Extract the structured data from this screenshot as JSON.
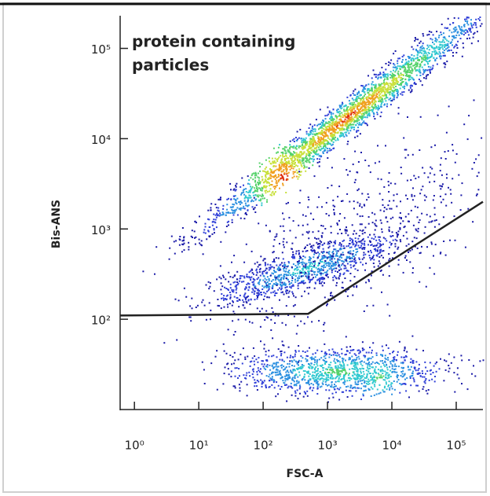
{
  "chart_data": {
    "type": "scatter",
    "x_label": "FSC-A",
    "y_label": "Bis-ANS",
    "annotation": [
      "protein containing",
      "particles"
    ],
    "xscale": "log",
    "yscale": "log",
    "xlim": [
      0.6,
      260000
    ],
    "ylim": [
      10,
      230000
    ],
    "xticks": [
      {
        "value": 1,
        "label": "10⁰"
      },
      {
        "value": 10,
        "label": "10¹"
      },
      {
        "value": 100,
        "label": "10²"
      },
      {
        "value": 1000,
        "label": "10³"
      },
      {
        "value": 10000,
        "label": "10⁴"
      },
      {
        "value": 100000,
        "label": "10⁵"
      }
    ],
    "yticks": [
      {
        "value": 100,
        "label": "10²"
      },
      {
        "value": 1000,
        "label": "10³"
      },
      {
        "value": 10000,
        "label": "10⁴"
      },
      {
        "value": 100000,
        "label": "10⁵"
      }
    ],
    "gate": {
      "color": "#222222",
      "x": [
        0.6,
        500,
        260000
      ],
      "y": [
        110,
        115,
        2000
      ]
    }
  }
}
